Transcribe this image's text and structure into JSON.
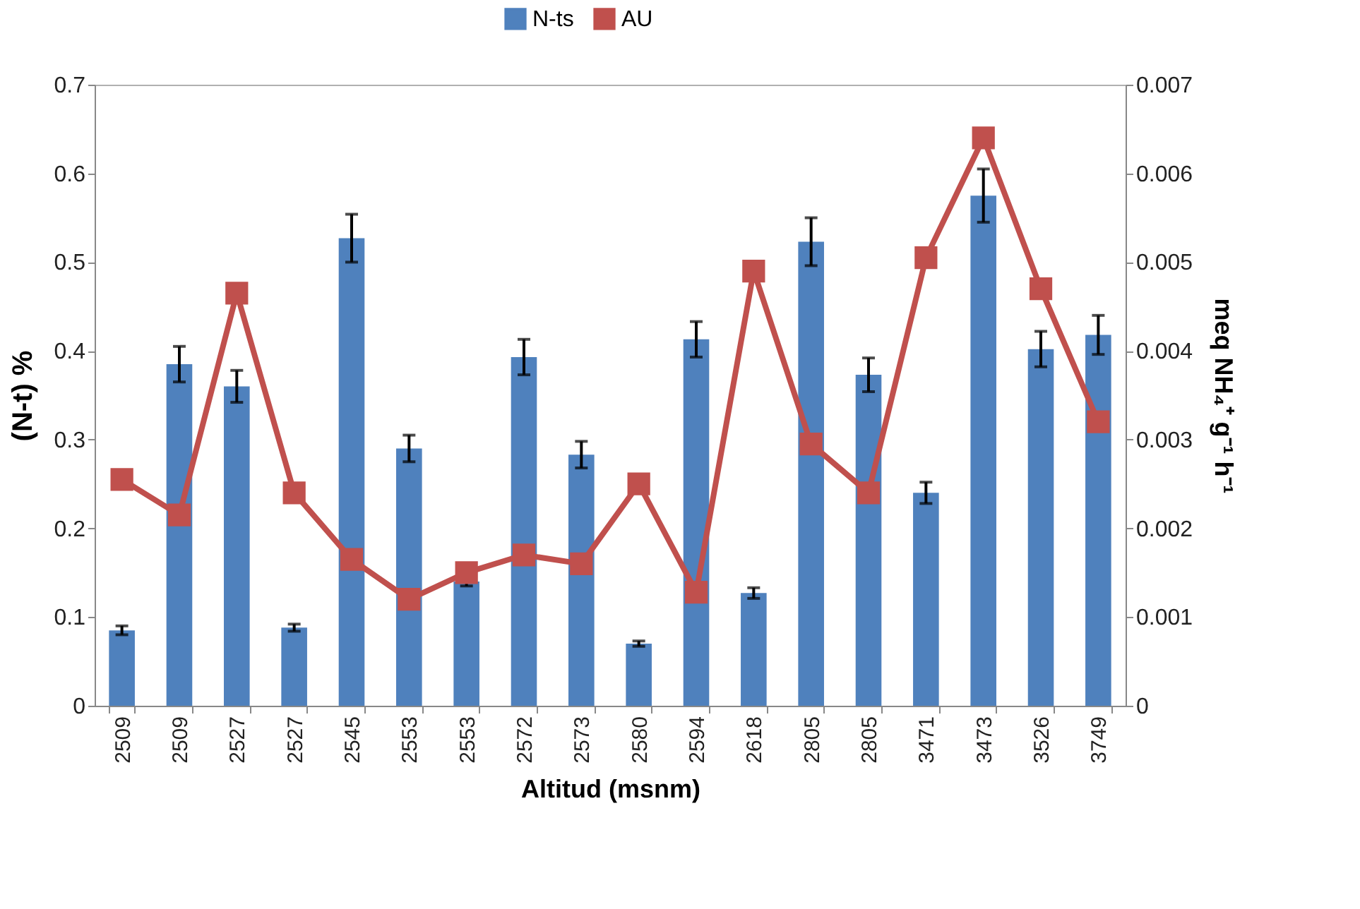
{
  "chart_data": {
    "type": "bar",
    "xlabel": "Altitud (msnm)",
    "ylabel": "(N-t) %",
    "y2label": "meq NH₄⁺ g⁻¹ h⁻¹",
    "categories": [
      "2509",
      "2509",
      "2527",
      "2527",
      "2545",
      "2553",
      "2553",
      "2572",
      "2573",
      "2580",
      "2594",
      "2618",
      "2805",
      "2805",
      "3471",
      "3473",
      "3526",
      "3749"
    ],
    "series": [
      {
        "name": "N-ts",
        "color": "#4f81bd",
        "values": [
          0.085,
          0.385,
          0.36,
          0.088,
          0.527,
          0.29,
          0.14,
          0.393,
          0.283,
          0.07,
          0.413,
          0.127,
          0.523,
          0.373,
          0.24,
          0.575,
          0.402,
          0.418
        ],
        "errors": [
          0.005,
          0.02,
          0.018,
          0.004,
          0.027,
          0.015,
          0.005,
          0.02,
          0.015,
          0.003,
          0.02,
          0.006,
          0.027,
          0.019,
          0.012,
          0.03,
          0.02,
          0.022
        ]
      },
      {
        "name": "AU",
        "type": "line",
        "axis": "y2",
        "color": "#c0504d",
        "marker": "square",
        "values": [
          0.00255,
          0.00215,
          0.00465,
          0.0024,
          0.00165,
          0.0012,
          0.0015,
          0.0017,
          0.0016,
          0.0025,
          0.00128,
          0.0049,
          0.00295,
          0.0024,
          0.00505,
          0.0064,
          0.0047,
          0.0032
        ]
      }
    ],
    "ylim": [
      0,
      0.7
    ],
    "yticks": [
      0,
      0.1,
      0.2,
      0.3,
      0.4,
      0.5,
      0.6,
      0.7
    ],
    "y2lim": [
      0,
      0.007
    ],
    "y2ticks": [
      0,
      0.001,
      0.002,
      0.003,
      0.004,
      0.005,
      0.006,
      0.007
    ],
    "legend": "top",
    "grid": false
  }
}
